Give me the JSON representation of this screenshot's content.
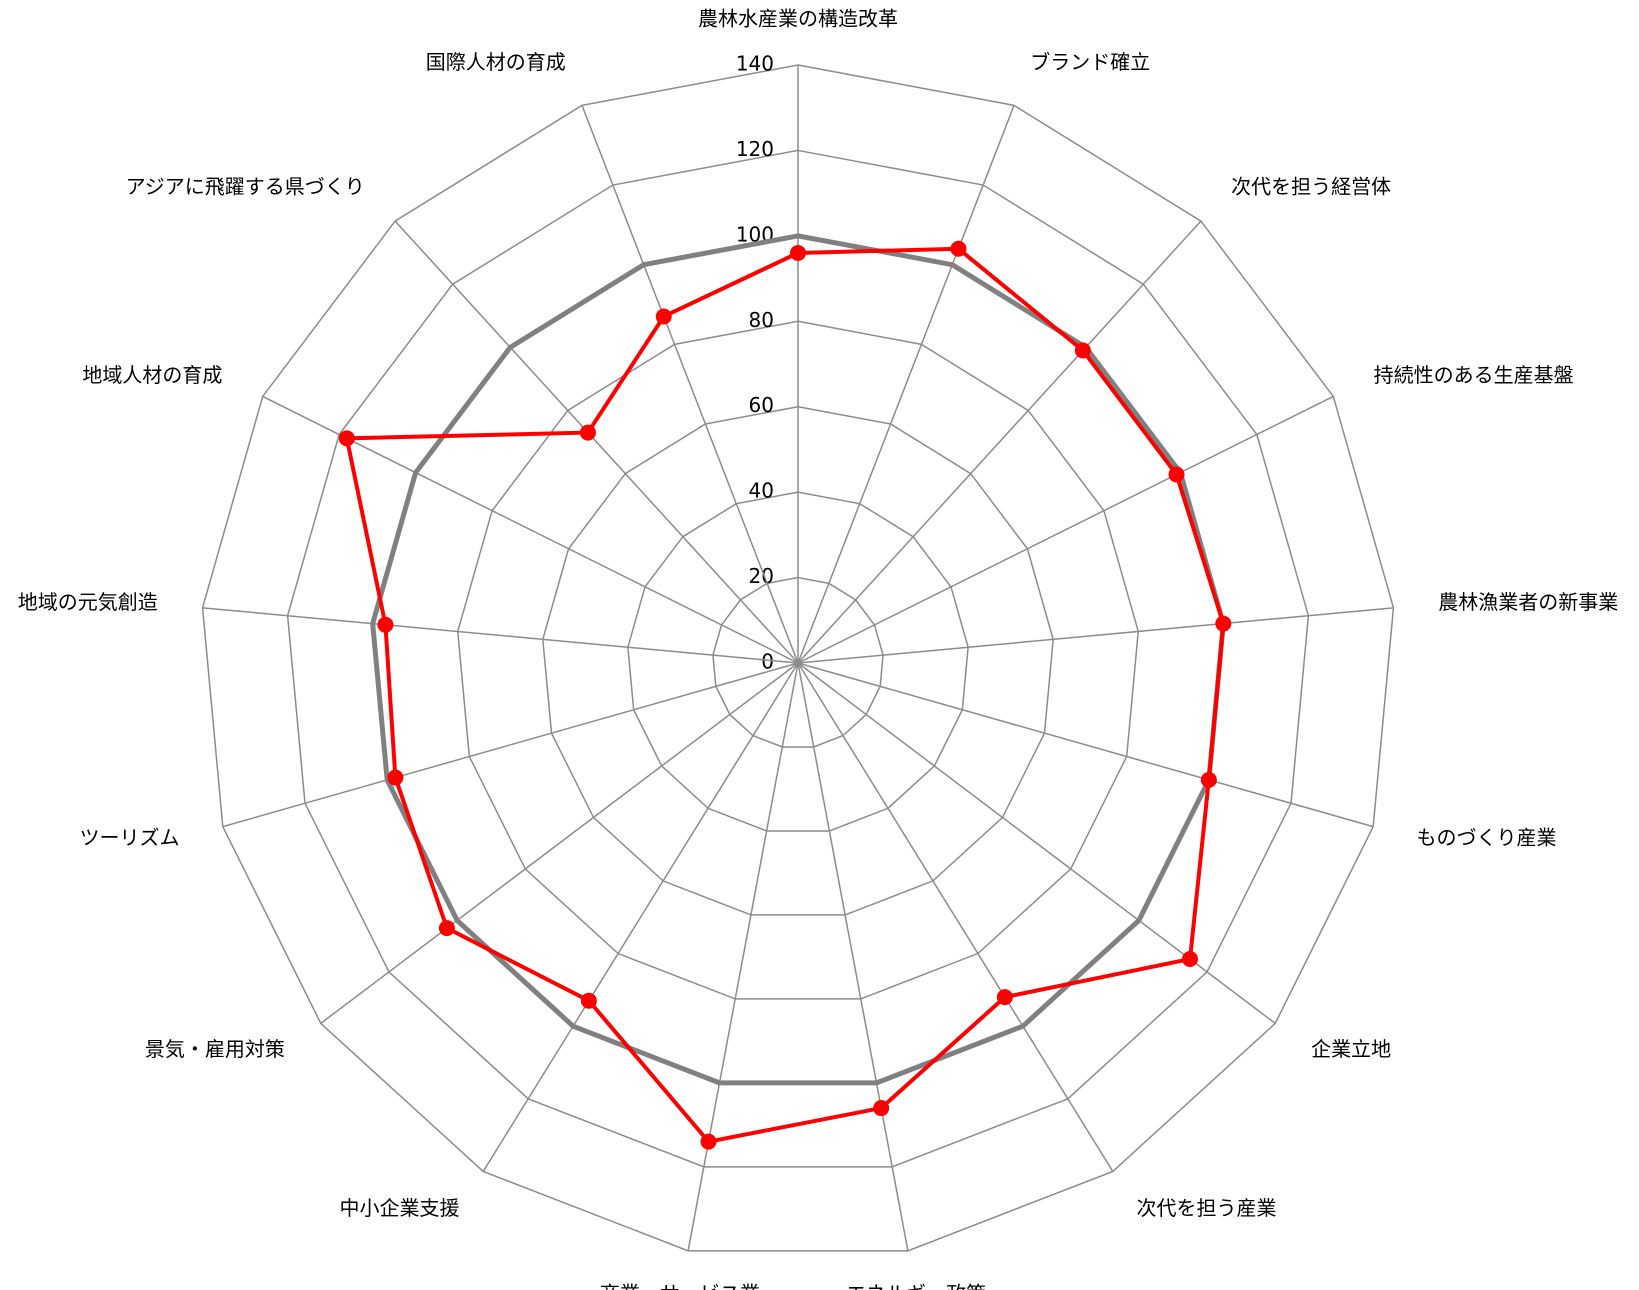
{
  "chart_data": {
    "type": "radar",
    "categories": [
      "農林水産業の構造改革",
      "ブランド確立",
      "次代を担う経営体",
      "持続性のある生産基盤",
      "農林漁業者の新事業",
      "ものづくり産業",
      "企業立地",
      "次代を担う産業",
      "エネルギー政策",
      "商業・サービス業",
      "中小企業支援",
      "景気・雇用対策",
      "ツーリズム",
      "地域の元気創造",
      "地域人材の育成",
      "アジアに飛躍する県づくり",
      "国際人材の育成"
    ],
    "series": [
      {
        "color": "#808080",
        "values": [
          100,
          100,
          100,
          100,
          100,
          100,
          100,
          100,
          100,
          100,
          100,
          100,
          100,
          100,
          100,
          100,
          100
        ]
      },
      {
        "color": "#ff0000",
        "values": [
          96,
          104,
          99,
          99,
          100,
          100,
          115,
          92,
          106,
          114,
          93,
          103,
          98,
          97,
          118,
          73,
          87
        ]
      }
    ],
    "ylim": [
      0,
      140
    ],
    "yticks": [
      0,
      20,
      40,
      60,
      80,
      100,
      120,
      140
    ],
    "grid": true
  }
}
